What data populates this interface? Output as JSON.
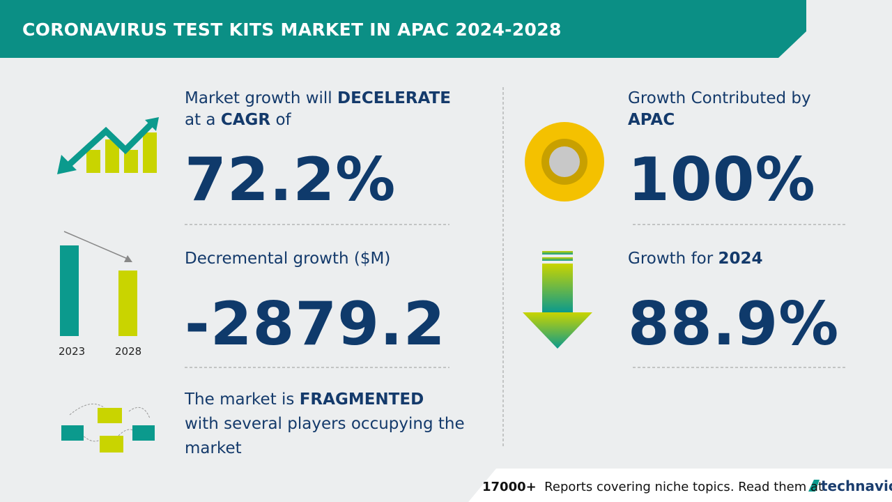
{
  "header": {
    "title": "CORONAVIRUS TEST KITS MARKET IN APAC 2024-2028"
  },
  "cagr": {
    "text_1": "Market growth will",
    "emphasis_1": "DECELERATE",
    "text_2": "at a",
    "emphasis_2": "CAGR",
    "text_3": "of",
    "value": "72.2%"
  },
  "decremental": {
    "label": "Decremental growth ($M)",
    "value": "-2879.2",
    "years": [
      "2023",
      "2028"
    ]
  },
  "fragmented": {
    "text_1": "The market is",
    "emphasis": "FRAGMENTED",
    "text_2": "with several players occupying the market"
  },
  "contribution": {
    "label": "Growth Contributed by",
    "region": "APAC",
    "value": "100%"
  },
  "growth_2024": {
    "label": "Growth for",
    "year": "2024",
    "value": "88.9%"
  },
  "footer": {
    "count": "17000+",
    "text": "Reports covering niche topics. Read them at",
    "brand": "technavio"
  }
}
